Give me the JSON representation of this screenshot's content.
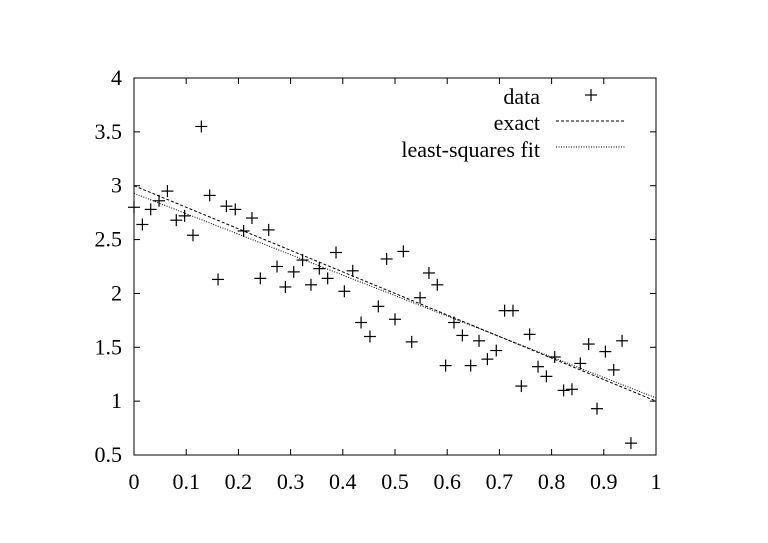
{
  "chart_data": {
    "type": "scatter",
    "title": "",
    "xlabel": "",
    "ylabel": "",
    "xlim": [
      0,
      1
    ],
    "ylim": [
      0.5,
      4
    ],
    "x_ticks": [
      "0",
      "0.1",
      "0.2",
      "0.3",
      "0.4",
      "0.5",
      "0.6",
      "0.7",
      "0.8",
      "0.9",
      "1"
    ],
    "x_tick_values": [
      0,
      0.1,
      0.2,
      0.3,
      0.4,
      0.5,
      0.6,
      0.7,
      0.8,
      0.9,
      1
    ],
    "y_ticks": [
      "0.5",
      "1",
      "1.5",
      "2",
      "2.5",
      "3",
      "3.5",
      "4"
    ],
    "y_tick_values": [
      0.5,
      1,
      1.5,
      2,
      2.5,
      3,
      3.5,
      4
    ],
    "grid": false,
    "legend_position": "top-right",
    "series": [
      {
        "name": "data",
        "style": "points",
        "marker": "plus",
        "points": [
          [
            0.0,
            2.8
          ],
          [
            0.016,
            2.64
          ],
          [
            0.032,
            2.78
          ],
          [
            0.048,
            2.86
          ],
          [
            0.064,
            2.95
          ],
          [
            0.081,
            2.68
          ],
          [
            0.097,
            2.72
          ],
          [
            0.113,
            2.54
          ],
          [
            0.129,
            3.55
          ],
          [
            0.145,
            2.91
          ],
          [
            0.161,
            2.13
          ],
          [
            0.177,
            2.81
          ],
          [
            0.194,
            2.78
          ],
          [
            0.21,
            2.58
          ],
          [
            0.226,
            2.7
          ],
          [
            0.242,
            2.14
          ],
          [
            0.258,
            2.59
          ],
          [
            0.274,
            2.25
          ],
          [
            0.29,
            2.06
          ],
          [
            0.306,
            2.2
          ],
          [
            0.323,
            2.31
          ],
          [
            0.339,
            2.08
          ],
          [
            0.355,
            2.23
          ],
          [
            0.371,
            2.14
          ],
          [
            0.387,
            2.38
          ],
          [
            0.403,
            2.02
          ],
          [
            0.419,
            2.21
          ],
          [
            0.435,
            1.73
          ],
          [
            0.452,
            1.6
          ],
          [
            0.468,
            1.88
          ],
          [
            0.484,
            2.32
          ],
          [
            0.5,
            1.76
          ],
          [
            0.516,
            2.39
          ],
          [
            0.532,
            1.55
          ],
          [
            0.548,
            1.96
          ],
          [
            0.565,
            2.19
          ],
          [
            0.581,
            2.08
          ],
          [
            0.597,
            1.33
          ],
          [
            0.613,
            1.73
          ],
          [
            0.629,
            1.61
          ],
          [
            0.645,
            1.33
          ],
          [
            0.661,
            1.56
          ],
          [
            0.677,
            1.39
          ],
          [
            0.694,
            1.47
          ],
          [
            0.71,
            1.84
          ],
          [
            0.726,
            1.84
          ],
          [
            0.742,
            1.14
          ],
          [
            0.758,
            1.62
          ],
          [
            0.774,
            1.32
          ],
          [
            0.79,
            1.23
          ],
          [
            0.806,
            1.41
          ],
          [
            0.823,
            1.1
          ],
          [
            0.839,
            1.11
          ],
          [
            0.855,
            1.35
          ],
          [
            0.871,
            1.53
          ],
          [
            0.887,
            0.93
          ],
          [
            0.903,
            1.46
          ],
          [
            0.919,
            1.29
          ],
          [
            0.935,
            1.56
          ],
          [
            0.952,
            0.61
          ]
        ]
      },
      {
        "name": "exact",
        "style": "dashed-line",
        "points": [
          [
            0,
            3.0
          ],
          [
            1,
            1.0
          ]
        ]
      },
      {
        "name": "least-squares fit",
        "style": "dotted-line",
        "points": [
          [
            0,
            2.93
          ],
          [
            1,
            1.03
          ]
        ]
      }
    ]
  }
}
